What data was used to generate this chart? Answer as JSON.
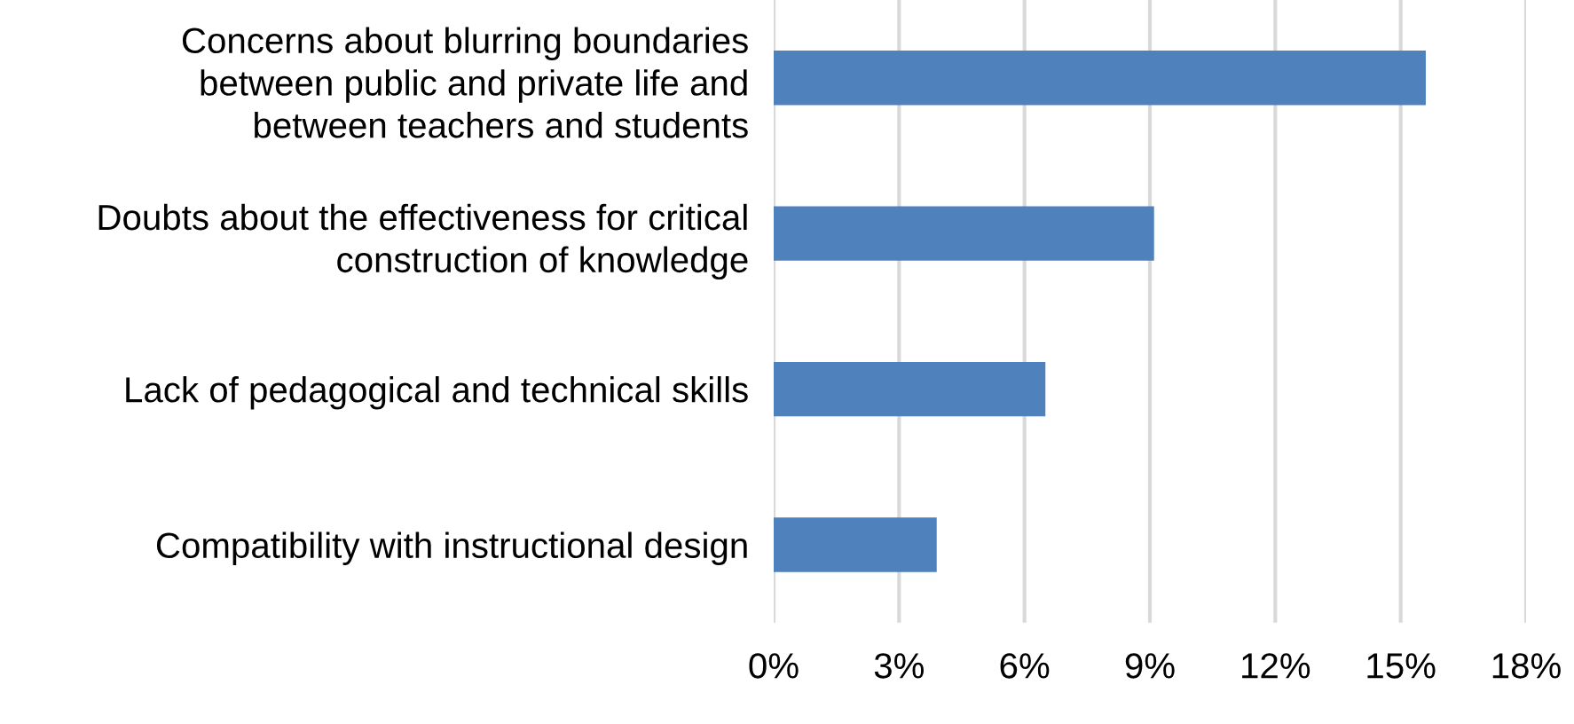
{
  "chart_data": {
    "type": "bar",
    "orientation": "horizontal",
    "categories": [
      "Concerns about blurring boundaries\nbetween public and private life and\nbetween teachers and students",
      "Doubts about the effectiveness for critical\nconstruction of knowledge",
      "Lack of pedagogical and technical skills",
      "Compatibility with instructional design"
    ],
    "values": [
      15.6,
      9.1,
      6.5,
      3.9
    ],
    "color": "#4f81bd",
    "xlim": [
      0,
      18
    ],
    "xticks": [
      {
        "value": 0,
        "label": "0%"
      },
      {
        "value": 3,
        "label": "3%"
      },
      {
        "value": 6,
        "label": "6%"
      },
      {
        "value": 9,
        "label": "9%"
      },
      {
        "value": 12,
        "label": "12%"
      },
      {
        "value": 15,
        "label": "15%"
      },
      {
        "value": 18,
        "label": "18%"
      }
    ],
    "grid": "x"
  }
}
